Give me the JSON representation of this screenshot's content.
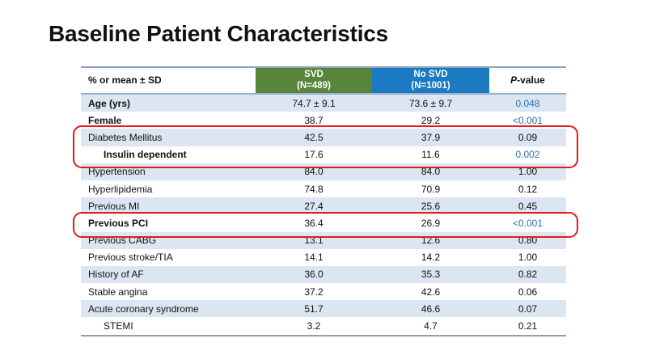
{
  "slide": {
    "title": "Baseline Patient Characteristics"
  },
  "table": {
    "header": {
      "measure_label": "% or mean ± SD",
      "svd_line1": "SVD",
      "svd_line2": "(N=489)",
      "no_svd_line1": "No SVD",
      "no_svd_line2": "(N=1001)",
      "p_italic": "P",
      "p_rest": "-value"
    },
    "rows": [
      {
        "label": "Age (yrs)",
        "svd": "74.7 ± 9.1",
        "no_svd": "73.6 ± 9.7",
        "p": "0.048",
        "bold": true,
        "indent": false,
        "shaded": true,
        "significant": true,
        "section_end": false
      },
      {
        "label": "Female",
        "svd": "38.7",
        "no_svd": "29.2",
        "p": "<0.001",
        "bold": true,
        "indent": false,
        "shaded": false,
        "significant": true,
        "section_end": false
      },
      {
        "label": "Diabetes Mellitus",
        "svd": "42.5",
        "no_svd": "37.9",
        "p": "0.09",
        "bold": false,
        "indent": false,
        "shaded": true,
        "significant": false,
        "section_end": false
      },
      {
        "label": "Insulin dependent",
        "svd": "17.6",
        "no_svd": "11.6",
        "p": "0.002",
        "bold": true,
        "indent": true,
        "shaded": false,
        "significant": true,
        "section_end": false
      },
      {
        "label": "Hypertension",
        "svd": "84.0",
        "no_svd": "84.0",
        "p": "1.00",
        "bold": false,
        "indent": false,
        "shaded": true,
        "significant": false,
        "section_end": false
      },
      {
        "label": "Hyperlipidemia",
        "svd": "74.8",
        "no_svd": "70.9",
        "p": "0.12",
        "bold": false,
        "indent": false,
        "shaded": false,
        "significant": false,
        "section_end": false
      },
      {
        "label": "Previous MI",
        "svd": "27.4",
        "no_svd": "25.6",
        "p": "0.45",
        "bold": false,
        "indent": false,
        "shaded": true,
        "significant": false,
        "section_end": false
      },
      {
        "label": "Previous PCI",
        "svd": "36.4",
        "no_svd": "26.9",
        "p": "<0.001",
        "bold": true,
        "indent": false,
        "shaded": false,
        "significant": true,
        "section_end": false
      },
      {
        "label": "Previous CABG",
        "svd": "13.1",
        "no_svd": "12.6",
        "p": "0.80",
        "bold": false,
        "indent": false,
        "shaded": true,
        "significant": false,
        "section_end": false
      },
      {
        "label": "Previous stroke/TIA",
        "svd": "14.1",
        "no_svd": "14.2",
        "p": "1.00",
        "bold": false,
        "indent": false,
        "shaded": false,
        "significant": false,
        "section_end": false
      },
      {
        "label": "History of AF",
        "svd": "36.0",
        "no_svd": "35.3",
        "p": "0.82",
        "bold": false,
        "indent": false,
        "shaded": true,
        "significant": false,
        "section_end": true
      },
      {
        "label": "Stable angina",
        "svd": "37.2",
        "no_svd": "42.6",
        "p": "0.06",
        "bold": false,
        "indent": false,
        "shaded": false,
        "significant": false,
        "section_end": false
      },
      {
        "label": "Acute coronary syndrome",
        "svd": "51.7",
        "no_svd": "46.6",
        "p": "0.07",
        "bold": false,
        "indent": false,
        "shaded": true,
        "significant": false,
        "section_end": false
      },
      {
        "label": "STEMI",
        "svd": "3.2",
        "no_svd": "4.7",
        "p": "0.21",
        "bold": false,
        "indent": true,
        "shaded": false,
        "significant": false,
        "section_end": false
      }
    ]
  },
  "colors": {
    "svd_header_green": "#58853c",
    "no_svd_header_blue": "#1b7ac1",
    "shaded_band_blue": "#dce6f2",
    "significant_p_blue": "#2673b8",
    "callout_red": "#e21b1c",
    "border_outer": "#8ba1bb",
    "border_header": "#9db1cf",
    "border_section": "#5f6b7a"
  }
}
